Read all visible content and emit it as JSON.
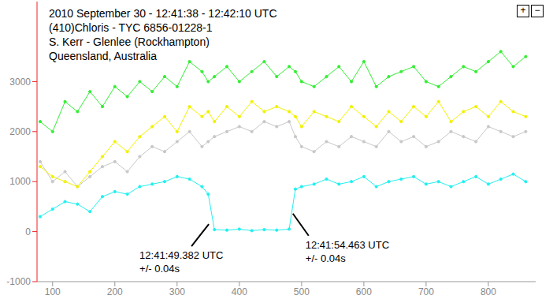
{
  "chart_data": {
    "type": "line",
    "title": "2010 September 30 - 12:41:38 - 12:42:10 UTC",
    "subtitle": [
      "(410)Chloris - TYC 6856-01228-1",
      "S. Kerr - Glenlee (Rockhampton)",
      "Queensland, Australia"
    ],
    "controls": [
      "+",
      "−"
    ],
    "x": [
      80,
      100,
      120,
      140,
      160,
      180,
      200,
      220,
      240,
      260,
      280,
      300,
      320,
      340,
      350,
      360,
      380,
      400,
      420,
      440,
      460,
      480,
      490,
      500,
      520,
      540,
      560,
      580,
      600,
      620,
      640,
      660,
      680,
      700,
      720,
      740,
      760,
      780,
      800,
      820,
      840,
      860
    ],
    "series": [
      {
        "color": "#c8c8c8",
        "marker": "circle",
        "line_style": "solid",
        "values": [
          1400,
          1000,
          1200,
          900,
          1100,
          1300,
          1400,
          1200,
          1500,
          1700,
          1600,
          1800,
          2000,
          1700,
          1800,
          1900,
          2000,
          2100,
          2000,
          2200,
          2100,
          2200,
          1900,
          1700,
          1600,
          1800,
          1700,
          1900,
          1800,
          1700,
          2000,
          1800,
          1900,
          1700,
          1800,
          2000,
          1900,
          1800,
          2100,
          2000,
          1900,
          2000
        ]
      },
      {
        "color": "#f2f200",
        "marker": "circle",
        "line_style": "solid",
        "values": [
          1300,
          1100,
          1000,
          900,
          1200,
          1500,
          1800,
          1600,
          1900,
          2100,
          2300,
          2000,
          2500,
          2300,
          2400,
          2200,
          2500,
          2300,
          2600,
          2400,
          2500,
          2400,
          2300,
          2100,
          2400,
          2300,
          2200,
          2500,
          2300,
          2100,
          2400,
          2200,
          2500,
          2300,
          2600,
          2200,
          2400,
          2500,
          2300,
          2600,
          2400,
          2300
        ]
      },
      {
        "color": "#33ee33",
        "marker": "circle",
        "line_style": "solid",
        "values": [
          2200,
          2000,
          2600,
          2400,
          2800,
          2500,
          2900,
          2700,
          3000,
          2800,
          3100,
          2900,
          3400,
          3200,
          3000,
          3100,
          3300,
          3000,
          3200,
          3400,
          3100,
          3300,
          3200,
          3000,
          2900,
          3100,
          3300,
          3000,
          3400,
          2900,
          3100,
          3200,
          3300,
          3000,
          2900,
          3100,
          3300,
          3200,
          3400,
          3600,
          3300,
          3500
        ]
      },
      {
        "color": "#22f0f0",
        "marker": "circle",
        "line_style": "solid",
        "values": [
          300,
          450,
          600,
          550,
          400,
          700,
          800,
          750,
          900,
          950,
          1000,
          1100,
          1050,
          900,
          750,
          40,
          30,
          50,
          20,
          40,
          30,
          50,
          850,
          900,
          950,
          1050,
          950,
          1000,
          1100,
          900,
          1000,
          1050,
          1100,
          950,
          1000,
          900,
          1000,
          1100,
          950,
          1050,
          1150,
          1000
        ]
      }
    ],
    "annotations": [
      {
        "x": 351,
        "y": 150,
        "lines": [
          "12:41:49.382 UTC",
          "+/- 0.04s"
        ]
      },
      {
        "x": 486,
        "y": 360,
        "lines": [
          "12:41:54.463 UTC",
          "+/- 0.04s"
        ]
      }
    ],
    "xlim": [
      75,
      876
    ],
    "xticks": [
      100,
      200,
      300,
      400,
      500,
      600,
      700,
      800
    ],
    "ylim": [
      -1000,
      4600
    ],
    "yticks": [
      -1000,
      0,
      1000,
      2000,
      3000
    ],
    "grid": false
  }
}
